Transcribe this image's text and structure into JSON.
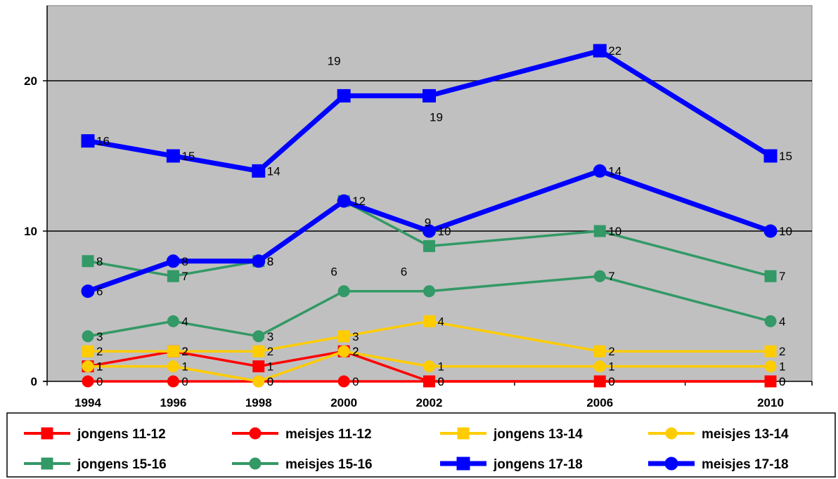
{
  "chart_data": {
    "type": "line",
    "x": [
      "1994",
      "1996",
      "1998",
      "2000",
      "2002",
      "2006",
      "2010"
    ],
    "x_values": [
      1994,
      1996,
      1998,
      2000,
      2002,
      2006,
      2010
    ],
    "ylim": [
      0,
      25
    ],
    "yticks": [
      "0",
      "10",
      "20"
    ],
    "ytick_values": [
      0,
      10,
      20
    ],
    "grid": "horizontal",
    "legend_position": "bottom",
    "series": [
      {
        "name": "jongens 11-12",
        "color": "#ff0000",
        "marker": "square",
        "line_weight": "thin",
        "values": [
          1,
          2,
          1,
          2,
          0,
          0,
          0
        ],
        "labels": [
          "1",
          "2",
          "1",
          "2",
          "0",
          "0",
          "0"
        ]
      },
      {
        "name": "meisjes 11-12",
        "color": "#ff0000",
        "marker": "circle",
        "line_weight": "thin",
        "values": [
          0,
          0,
          0,
          0,
          0,
          0,
          0
        ],
        "labels": [
          "0",
          "0",
          "0",
          "0",
          "0",
          "0",
          "0"
        ]
      },
      {
        "name": "jongens 13-14",
        "color": "#ffcc00",
        "marker": "square",
        "line_weight": "thin",
        "values": [
          2,
          2,
          2,
          3,
          4,
          2,
          2
        ],
        "labels": [
          "2",
          "2",
          "2",
          "3",
          "4",
          "2",
          "2"
        ]
      },
      {
        "name": "meisjes 13-14",
        "color": "#ffcc00",
        "marker": "circle",
        "line_weight": "thin",
        "values": [
          1,
          1,
          0,
          2,
          1,
          1,
          1
        ],
        "labels": [
          "1",
          "1",
          "0",
          "2",
          "1",
          "1",
          "1"
        ]
      },
      {
        "name": "jongens 15-16",
        "color": "#339966",
        "marker": "square",
        "line_weight": "thin",
        "values": [
          8,
          7,
          8,
          12,
          9,
          10,
          7
        ],
        "labels": [
          "8",
          "7",
          "8",
          "",
          "9",
          "10",
          "7"
        ]
      },
      {
        "name": "meisjes 15-16",
        "color": "#339966",
        "marker": "circle",
        "line_weight": "thin",
        "values": [
          3,
          4,
          3,
          6,
          6,
          7,
          4
        ],
        "labels": [
          "3",
          "4",
          "3",
          "6",
          "6",
          "7",
          "4"
        ]
      },
      {
        "name": "jongens 17-18",
        "color": "#0000ff",
        "marker": "square",
        "line_weight": "thick",
        "values": [
          16,
          15,
          14,
          19,
          19,
          22,
          15
        ],
        "labels": [
          "16",
          "15",
          "14",
          "19",
          "19",
          "22",
          "15"
        ]
      },
      {
        "name": "meisjes 17-18",
        "color": "#0000ff",
        "marker": "circle",
        "line_weight": "thick",
        "values": [
          6,
          8,
          8,
          12,
          10,
          14,
          10
        ],
        "labels": [
          "6",
          "8",
          "8",
          "12",
          "10",
          "14",
          "10"
        ]
      }
    ]
  }
}
